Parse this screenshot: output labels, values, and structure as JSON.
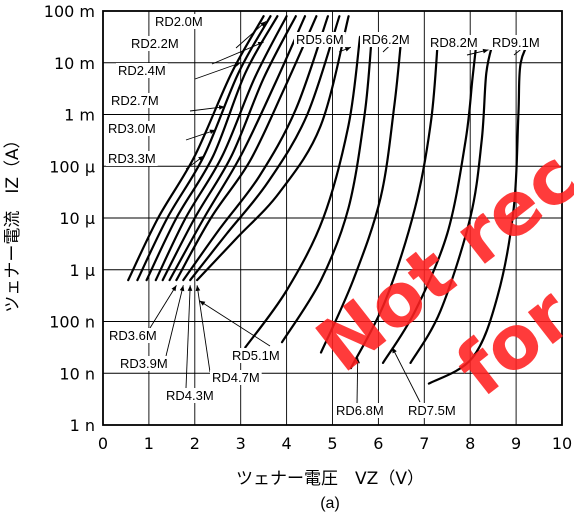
{
  "chart_data": {
    "type": "line",
    "title": "",
    "xlabel": "ツェナー電圧　VZ（V）",
    "ylabel": "ツェナー電流　IZ（A）",
    "caption": "(a)",
    "watermark_lines": [
      "Not rec",
      "for ne"
    ],
    "xlim": [
      0,
      10
    ],
    "x_ticks": [
      "0",
      "1",
      "2",
      "3",
      "4",
      "5",
      "6",
      "7",
      "8",
      "9",
      "10"
    ],
    "ylim_log10": [
      -9,
      -1
    ],
    "y_ticks": [
      "1 n",
      "10 n",
      "100 n",
      "1 μ",
      "10 μ",
      "100 μ",
      "1 m",
      "10 m",
      "100 m"
    ],
    "grid": true,
    "series": [
      {
        "name": "RD2.0M",
        "points": [
          [
            0.55,
            -6.2
          ],
          [
            1.2,
            -5.0
          ],
          [
            2.0,
            -3.8
          ],
          [
            2.8,
            -2.2
          ],
          [
            3.5,
            -1.1
          ]
        ]
      },
      {
        "name": "RD2.2M",
        "points": [
          [
            0.75,
            -6.2
          ],
          [
            1.4,
            -5.0
          ],
          [
            2.2,
            -3.8
          ],
          [
            2.95,
            -2.2
          ],
          [
            3.65,
            -1.1
          ]
        ]
      },
      {
        "name": "RD2.4M",
        "points": [
          [
            0.95,
            -6.2
          ],
          [
            1.6,
            -5.0
          ],
          [
            2.4,
            -3.8
          ],
          [
            3.1,
            -2.2
          ],
          [
            3.8,
            -1.1
          ]
        ]
      },
      {
        "name": "RD2.7M",
        "points": [
          [
            1.15,
            -6.2
          ],
          [
            1.8,
            -5.0
          ],
          [
            2.6,
            -3.8
          ],
          [
            3.3,
            -2.3
          ],
          [
            4.0,
            -1.1
          ]
        ]
      },
      {
        "name": "RD3.0M",
        "points": [
          [
            1.3,
            -6.2
          ],
          [
            2.0,
            -5.0
          ],
          [
            2.8,
            -3.8
          ],
          [
            3.5,
            -2.3
          ],
          [
            4.2,
            -1.1
          ]
        ]
      },
      {
        "name": "RD3.3M",
        "points": [
          [
            1.45,
            -6.2
          ],
          [
            2.2,
            -5.0
          ],
          [
            3.0,
            -3.8
          ],
          [
            3.75,
            -2.4
          ],
          [
            4.4,
            -1.1
          ]
        ]
      },
      {
        "name": "RD3.6M",
        "points": [
          [
            1.6,
            -6.2
          ],
          [
            2.35,
            -5.0
          ],
          [
            3.2,
            -3.9
          ],
          [
            3.95,
            -2.5
          ],
          [
            4.65,
            -1.1
          ]
        ]
      },
      {
        "name": "RD3.9M",
        "points": [
          [
            1.75,
            -6.2
          ],
          [
            2.55,
            -5.2
          ],
          [
            3.4,
            -4.2
          ],
          [
            4.2,
            -2.9
          ],
          [
            4.9,
            -1.1
          ]
        ]
      },
      {
        "name": "RD4.3M",
        "points": [
          [
            1.9,
            -6.2
          ],
          [
            2.7,
            -5.3
          ],
          [
            3.6,
            -4.3
          ],
          [
            4.45,
            -3.0
          ],
          [
            5.15,
            -1.1
          ]
        ]
      },
      {
        "name": "RD4.7M",
        "points": [
          [
            2.05,
            -6.2
          ],
          [
            2.9,
            -5.4
          ],
          [
            3.85,
            -4.5
          ],
          [
            4.75,
            -3.2
          ],
          [
            5.35,
            -1.1
          ]
        ]
      },
      {
        "name": "RD5.1M",
        "points": [
          [
            3.1,
            -7.5
          ],
          [
            4.0,
            -6.4
          ],
          [
            4.8,
            -5.0
          ],
          [
            5.35,
            -3.2
          ],
          [
            5.6,
            -1.5
          ]
        ]
      },
      {
        "name": "RD5.6M",
        "points": [
          [
            3.9,
            -7.4
          ],
          [
            4.75,
            -6.2
          ],
          [
            5.35,
            -4.8
          ],
          [
            5.7,
            -3.0
          ],
          [
            5.85,
            -1.55
          ]
        ]
      },
      {
        "name": "RD6.2M",
        "points": [
          [
            4.75,
            -7.6
          ],
          [
            5.45,
            -6.2
          ],
          [
            6.05,
            -4.6
          ],
          [
            6.35,
            -2.8
          ],
          [
            6.5,
            -1.5
          ]
        ]
      },
      {
        "name": "RD6.8M",
        "points": [
          [
            5.4,
            -7.9
          ],
          [
            6.15,
            -6.6
          ],
          [
            6.8,
            -4.8
          ],
          [
            7.15,
            -3.1
          ],
          [
            7.3,
            -1.5
          ]
        ]
      },
      {
        "name": "RD7.5M",
        "points": [
          [
            6.1,
            -7.8
          ],
          [
            6.8,
            -6.8
          ],
          [
            7.5,
            -5.3
          ],
          [
            7.9,
            -3.5
          ],
          [
            8.05,
            -2.3
          ],
          [
            8.15,
            -1.5
          ]
        ]
      },
      {
        "name": "RD8.2M",
        "points": [
          [
            6.7,
            -7.8
          ],
          [
            7.35,
            -6.8
          ],
          [
            8.0,
            -5.0
          ],
          [
            8.25,
            -3.5
          ],
          [
            8.35,
            -2.2
          ],
          [
            8.5,
            -1.6
          ]
        ]
      },
      {
        "name": "RD9.1M",
        "points": [
          [
            7.1,
            -8.2
          ],
          [
            8.05,
            -7.7
          ],
          [
            8.6,
            -6.5
          ],
          [
            8.95,
            -4.8
          ],
          [
            9.05,
            -3.0
          ],
          [
            9.1,
            -2.0
          ],
          [
            9.35,
            -1.5
          ]
        ]
      }
    ]
  }
}
